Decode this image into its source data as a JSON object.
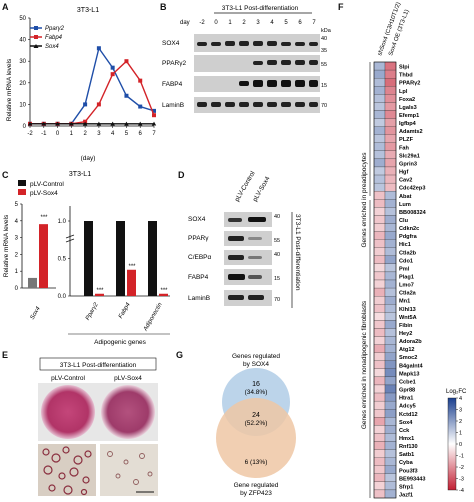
{
  "panels": {
    "A": "A",
    "B": "B",
    "C": "C",
    "D": "D",
    "E": "E",
    "F": "F",
    "G": "G"
  },
  "panel_a": {
    "title": "3T3-L1",
    "ylabel": "Relative mRNA levels",
    "xlabel": "(day)",
    "legend": [
      "Pparγ2",
      "Fabp4",
      "Sox4"
    ]
  },
  "panel_b": {
    "header": "3T3-L1  Post-differentiation",
    "day_label": "day",
    "days": [
      "-2",
      "0",
      "1",
      "2",
      "3",
      "4",
      "5",
      "6",
      "7"
    ],
    "kda": "kDa",
    "rows": [
      {
        "label": "SOX4",
        "mw": "40"
      },
      {
        "label": "PPARγ2",
        "mw": "55"
      },
      {
        "label": "FABP4",
        "mw": "15"
      },
      {
        "label": "LaminB",
        "mw": "70"
      }
    ],
    "extra_mw": "35"
  },
  "panel_c": {
    "title": "3T3-L1",
    "legend": [
      "pLV-Control",
      "pLV-Sox4"
    ],
    "ylabel": "Relative mRNA levels",
    "genes": [
      "Sox4",
      "Pparγ2",
      "Fabp4",
      "Adiponectin"
    ],
    "group_label": "Adipogenic genes",
    "sig": [
      "***",
      "***",
      "***",
      "***"
    ]
  },
  "panel_d": {
    "lanes": [
      "pLV-Control",
      "pLV-Sox4"
    ],
    "side": "3T3-L1  Post-differentiation",
    "rows": [
      {
        "label": "SOX4",
        "mw": "40"
      },
      {
        "label": "PPARγ",
        "mw": "55"
      },
      {
        "label": "C/EBPα",
        "mw": "40"
      },
      {
        "label": "FABP4",
        "mw": "15"
      },
      {
        "label": "LaminB",
        "mw": "70"
      }
    ]
  },
  "panel_e": {
    "header": "3T3-L1  Post-differentiation",
    "cols": [
      "pLV-Control",
      "pLV-Sox4"
    ]
  },
  "panel_f": {
    "col_labels": [
      "shSox4 (C3H10T1/2)",
      "Sox4 OE (3T3-L1)"
    ],
    "group1": "Genes enriched in preadipocytes",
    "group2": "Genes enriched in nonadipogenic fibroblasts",
    "colorbar_title": "Log₂FC",
    "colorbar_ticks": [
      "4",
      "3",
      "2",
      "1",
      "0",
      "-1",
      "-2",
      "-3",
      "-4"
    ],
    "colors": {
      "pos": "#d1243a",
      "neg": "#1f5cad"
    }
  },
  "panel_g": {
    "top": "Genes regulated\nby SOX4",
    "top_lines": [
      "Genes regulated",
      "by SOX4"
    ],
    "bottom_lines": [
      "Gene regulated",
      "by ZFP423"
    ],
    "counts": [
      "16",
      "(34.8%)",
      "24",
      "(52.2%)",
      "6 (13%)"
    ]
  },
  "chart_data": [
    {
      "type": "line",
      "title": "3T3-L1",
      "xlabel": "(day)",
      "ylabel": "Relative mRNA levels",
      "x": [
        -2,
        -1,
        0,
        1,
        2,
        3,
        4,
        5,
        6,
        7
      ],
      "ylim": [
        0,
        50
      ],
      "series": [
        {
          "name": "Pparγ2",
          "values": [
            1,
            1,
            1,
            1,
            10,
            36,
            27,
            14,
            9,
            7
          ]
        },
        {
          "name": "Fabp4",
          "values": [
            1,
            1,
            1,
            1,
            2,
            10,
            24,
            30,
            21,
            5
          ]
        },
        {
          "name": "Sox4",
          "values": [
            1,
            1,
            1,
            1,
            1,
            1,
            1,
            1,
            1,
            1
          ]
        }
      ]
    },
    {
      "type": "bar",
      "title": "3T3-L1",
      "categories": [
        "Sox4",
        "Pparγ2",
        "Fabp4",
        "Adiponectin"
      ],
      "ylabel": "Relative mRNA levels",
      "series": [
        {
          "name": "pLV-Control",
          "values": [
            0.6,
            1,
            1,
            1
          ]
        },
        {
          "name": "pLV-Sox4",
          "values": [
            3.8,
            0.03,
            0.35,
            0.03
          ]
        }
      ]
    },
    {
      "type": "heatmap",
      "columns": [
        "shSox4 (C3H10T1/2)",
        "Sox4 OE (3T3-L1)"
      ],
      "rows": [
        "Slpi",
        "Thbd",
        "PPARγ2",
        "Lpl",
        "Foxa2",
        "Lgals3",
        "Efemp1",
        "Igfbp4",
        "Adamts2",
        "PLZF",
        "Fah",
        "Slc29a1",
        "Gprin3",
        "Hgf",
        "Cav2",
        "Cdc42ep3",
        "Abat",
        "Lum",
        "BB008324",
        "Clu",
        "Cdkn2c",
        "Pdgfra",
        "Hic1",
        "Ctla2b",
        "Cdo1",
        "Pml",
        "Plag1",
        "Lmo7",
        "Ctla2a",
        "Mn1",
        "Klhl13",
        "Wnt5A",
        "Fibin",
        "Hey2",
        "Adora2b",
        "Atg12",
        "Smoc2",
        "B4galnt4",
        "Mapk13",
        "Ccbe1",
        "Gpr88",
        "Htra1",
        "Adcy5",
        "Kctd12",
        "Sox4",
        "Cck",
        "Hmx1",
        "Rnf130",
        "Satb1",
        "Cyba",
        "Pou3f3",
        "BE993443",
        "Sfrp1",
        "Jazf1"
      ],
      "values": [
        [
          -1.5,
          2.5
        ],
        [
          -1.8,
          2.3
        ],
        [
          -1.4,
          2.6
        ],
        [
          -1.6,
          2.2
        ],
        [
          -1.3,
          2.0
        ],
        [
          -1.2,
          1.8
        ],
        [
          -1.5,
          2.1
        ],
        [
          -1.1,
          1.7
        ],
        [
          -1.6,
          1.9
        ],
        [
          -1.2,
          1.6
        ],
        [
          -1.4,
          1.8
        ],
        [
          -1.3,
          1.5
        ],
        [
          -1.7,
          1.6
        ],
        [
          -1.1,
          1.4
        ],
        [
          -1.3,
          1.3
        ],
        [
          -1.2,
          1.2
        ],
        [
          1.1,
          -1.4
        ],
        [
          1.2,
          -1.6
        ],
        [
          0.8,
          -1.3
        ],
        [
          1.0,
          -1.7
        ],
        [
          0.9,
          -1.5
        ],
        [
          1.3,
          -1.8
        ],
        [
          1.1,
          -1.6
        ],
        [
          0.9,
          -1.4
        ],
        [
          1.2,
          -1.9
        ],
        [
          0.7,
          -1.2
        ],
        [
          1.0,
          -1.5
        ],
        [
          0.8,
          -1.6
        ],
        [
          1.4,
          -1.3
        ],
        [
          0.9,
          -1.7
        ],
        [
          1.1,
          -1.4
        ],
        [
          0.6,
          -1.2
        ],
        [
          1.0,
          -1.8
        ],
        [
          1.2,
          -1.3
        ],
        [
          0.8,
          -1.5
        ],
        [
          1.5,
          -1.6
        ],
        [
          0.9,
          -1.9
        ],
        [
          1.1,
          -2.2
        ],
        [
          0.7,
          -2.4
        ],
        [
          1.3,
          -1.9
        ],
        [
          0.8,
          -2.6
        ],
        [
          1.2,
          -2.1
        ],
        [
          0.9,
          -1.8
        ],
        [
          1.0,
          -2.0
        ],
        [
          1.6,
          -1.5
        ],
        [
          0.8,
          -1.7
        ],
        [
          1.1,
          -1.4
        ],
        [
          1.4,
          -1.6
        ],
        [
          0.9,
          -1.3
        ],
        [
          1.2,
          -1.5
        ],
        [
          1.0,
          -1.8
        ],
        [
          1.3,
          -1.2
        ],
        [
          0.8,
          -1.4
        ],
        [
          1.1,
          -1.6
        ]
      ]
    },
    {
      "type": "table",
      "title": "Venn",
      "categories": [
        "SOX4 only",
        "Both",
        "ZFP423 only"
      ],
      "values": [
        16,
        24,
        6
      ],
      "percent": [
        34.8,
        52.2,
        13
      ]
    }
  ]
}
